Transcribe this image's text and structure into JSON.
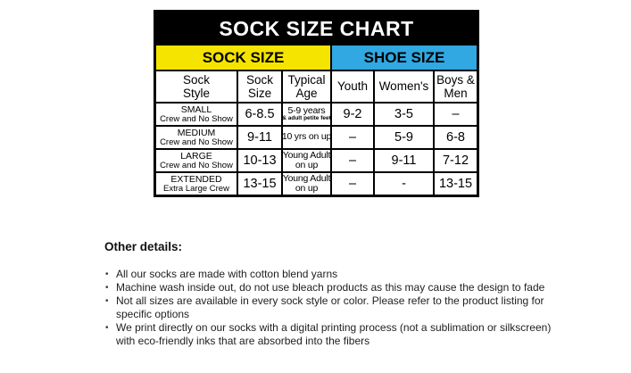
{
  "colors": {
    "header_band": "#000000",
    "title_text": "#ffffff",
    "sock_size_band": "#F5E400",
    "shoe_size_band": "#31A8E1",
    "grid_lines": "#000000",
    "background": "#ffffff"
  },
  "chart_data": {
    "type": "table",
    "title": "SOCK SIZE CHART",
    "group_headers": [
      {
        "label": "SOCK SIZE",
        "span": 3
      },
      {
        "label": "SHOE SIZE",
        "span": 3
      }
    ],
    "columns": [
      {
        "l1": "Sock",
        "l2": "Style"
      },
      {
        "l1": "Sock",
        "l2": "Size"
      },
      {
        "l1": "Typical",
        "l2": "Age"
      },
      {
        "l1": "Youth",
        "l2": ""
      },
      {
        "l1": "Women's",
        "l2": ""
      },
      {
        "l1": "Boys &",
        "l2": "Men"
      }
    ],
    "rows": [
      {
        "style_l1": "SMALL",
        "style_l2": "Crew and No Show",
        "size": "6-8.5",
        "age_l1": "5-9 years",
        "age_l2": "& adult petite feet",
        "youth": "9-2",
        "womens": "3-5",
        "boys_men": "–"
      },
      {
        "style_l1": "MEDIUM",
        "style_l2": "Crew and No Show",
        "size": "9-11",
        "age_l1": "10 yrs on up",
        "age_l2": "",
        "youth": "–",
        "womens": "5-9",
        "boys_men": "6-8"
      },
      {
        "style_l1": "LARGE",
        "style_l2": "Crew and No Show",
        "size": "10-13",
        "age_l1": "Young Adult",
        "age_l2": "on up",
        "youth": "–",
        "womens": "9-11",
        "boys_men": "7-12"
      },
      {
        "style_l1": "EXTENDED",
        "style_l2": "Extra Large Crew",
        "size": "13-15",
        "age_l1": "Young Adult",
        "age_l2": "on up",
        "youth": "–",
        "womens": "-",
        "boys_men": "13-15"
      }
    ]
  },
  "details": {
    "heading": "Other details:",
    "bullets": [
      "All our socks are made with cotton blend yarns",
      "Machine wash inside out, do not use bleach products as this may cause the design to fade",
      "Not all sizes are available in every sock style or color.  Please refer to the product listing for specific options",
      "We print directly on our socks with a digital printing process (not a sublimation or silkscreen) with eco-friendly inks that are absorbed into the fibers"
    ]
  }
}
